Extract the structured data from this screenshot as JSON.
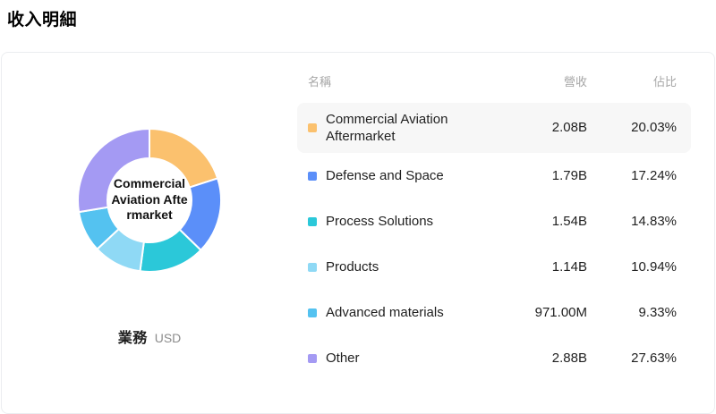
{
  "page_title": "收入明細",
  "chart": {
    "center_label": "Commercial Aviation Aftermarket",
    "footer_label": "業務",
    "footer_unit": "USD"
  },
  "table": {
    "headers": {
      "name": "名稱",
      "revenue": "營收",
      "share": "佔比"
    },
    "rows": [
      {
        "name": "Commercial Aviation Aftermarket",
        "revenue": "2.08B",
        "share": "20.03%",
        "color": "#fbc16e",
        "highlighted": true
      },
      {
        "name": "Defense and Space",
        "revenue": "1.79B",
        "share": "17.24%",
        "color": "#5b8ff9",
        "highlighted": false
      },
      {
        "name": "Process Solutions",
        "revenue": "1.54B",
        "share": "14.83%",
        "color": "#2bc8d9",
        "highlighted": false
      },
      {
        "name": "Products",
        "revenue": "1.14B",
        "share": "10.94%",
        "color": "#8fd9f5",
        "highlighted": false
      },
      {
        "name": "Advanced materials",
        "revenue": "971.00M",
        "share": "9.33%",
        "color": "#54c2f0",
        "highlighted": false
      },
      {
        "name": "Other",
        "revenue": "2.88B",
        "share": "27.63%",
        "color": "#a49af3",
        "highlighted": false
      }
    ]
  },
  "chart_data": {
    "type": "pie",
    "title": "收入明細",
    "subtitle": "業務 (USD)",
    "categories": [
      "Commercial Aviation Aftermarket",
      "Defense and Space",
      "Process Solutions",
      "Products",
      "Advanced materials",
      "Other"
    ],
    "values": [
      20.03,
      17.24,
      14.83,
      10.94,
      9.33,
      27.63
    ],
    "revenue_labels": [
      "2.08B",
      "1.79B",
      "1.54B",
      "1.14B",
      "971.00M",
      "2.88B"
    ],
    "colors": [
      "#fbc16e",
      "#5b8ff9",
      "#2bc8d9",
      "#8fd9f5",
      "#54c2f0",
      "#a49af3"
    ],
    "donut": true,
    "inner_radius_ratio": 0.59,
    "start_angle_deg": -90,
    "direction": "clockwise",
    "legend_position": "right-table",
    "center_label": "Commercial Aviation Aftermarket"
  }
}
